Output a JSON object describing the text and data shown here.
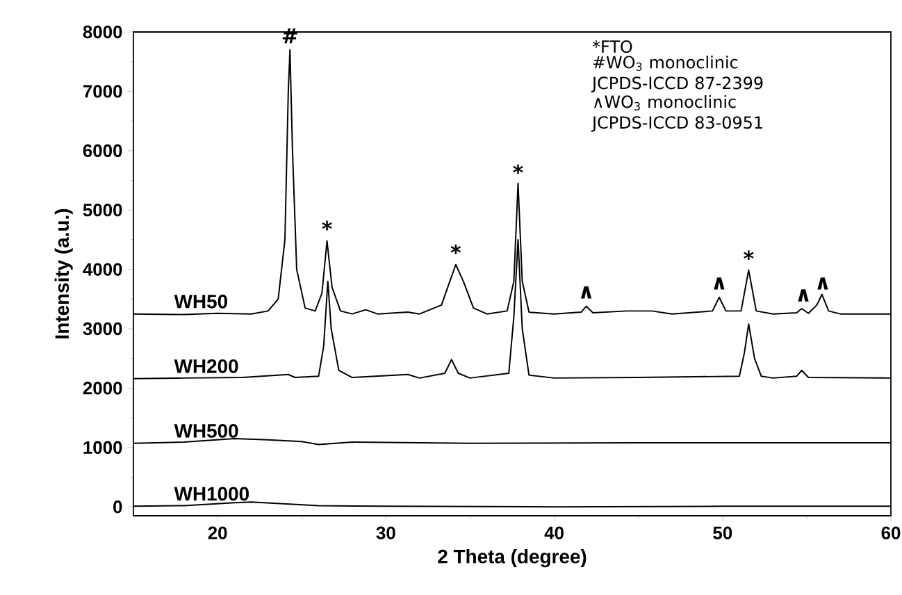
{
  "chart_data": {
    "type": "line",
    "xlabel": "2 Theta (degree)",
    "ylabel": "Intensity (a.u.)",
    "xlim": [
      15,
      60
    ],
    "xticks": [
      20,
      30,
      40,
      50,
      60
    ],
    "ylim": [
      -150,
      8000
    ],
    "yticks": [
      0,
      1000,
      2000,
      3000,
      4000,
      5000,
      6000,
      7000,
      8000
    ],
    "series": [
      {
        "name": "WH50",
        "color": "#000000",
        "x": [
          15,
          18,
          20,
          22,
          23,
          23.6,
          24.0,
          24.2,
          24.3,
          24.45,
          24.7,
          25.2,
          25.8,
          26.2,
          26.5,
          26.8,
          27.3,
          28,
          28.8,
          29.5,
          31.3,
          32,
          33.3,
          33.8,
          34.15,
          34.6,
          35.2,
          36,
          37.2,
          37.6,
          37.85,
          38.1,
          38.5,
          40,
          41.6,
          41.9,
          42.3,
          44.3,
          45.8,
          47,
          49.4,
          49.8,
          50.2,
          51.1,
          51.55,
          52,
          53,
          54.4,
          54.7,
          55.1,
          55.6,
          55.9,
          56.3,
          57,
          60
        ],
        "values": [
          3250,
          3240,
          3260,
          3250,
          3300,
          3500,
          4500,
          7000,
          7700,
          6000,
          4000,
          3350,
          3300,
          3600,
          4480,
          3700,
          3300,
          3250,
          3320,
          3250,
          3280,
          3250,
          3400,
          3800,
          4080,
          3800,
          3350,
          3250,
          3300,
          3800,
          5450,
          3800,
          3280,
          3250,
          3280,
          3380,
          3270,
          3300,
          3300,
          3250,
          3300,
          3530,
          3300,
          3300,
          3990,
          3300,
          3250,
          3270,
          3340,
          3260,
          3400,
          3580,
          3300,
          3250,
          3250
        ]
      },
      {
        "name": "WH200",
        "color": "#000000",
        "x": [
          15,
          18,
          21.5,
          24.2,
          24.6,
          26,
          26.3,
          26.55,
          26.75,
          27.2,
          28,
          31.3,
          32,
          33.5,
          33.9,
          34.3,
          35,
          37.3,
          37.6,
          37.85,
          38.1,
          38.5,
          40,
          45,
          51,
          51.3,
          51.55,
          51.9,
          52.3,
          53,
          54.4,
          54.7,
          55.1,
          60
        ],
        "values": [
          2160,
          2170,
          2180,
          2230,
          2180,
          2200,
          2700,
          3800,
          3000,
          2300,
          2180,
          2230,
          2170,
          2250,
          2480,
          2250,
          2170,
          2250,
          3200,
          4500,
          3000,
          2220,
          2170,
          2180,
          2200,
          2600,
          3080,
          2500,
          2200,
          2170,
          2200,
          2300,
          2180,
          2170
        ]
      },
      {
        "name": "WH500",
        "color": "#000000",
        "x": [
          15,
          18,
          21,
          23,
          25,
          26,
          28,
          35,
          45,
          60
        ],
        "values": [
          1070,
          1090,
          1150,
          1130,
          1100,
          1050,
          1090,
          1070,
          1080,
          1080
        ]
      },
      {
        "name": "WH1000",
        "color": "#000000",
        "x": [
          15,
          18,
          21,
          22,
          24,
          26,
          30,
          40,
          50,
          60
        ],
        "values": [
          10,
          20,
          70,
          80,
          50,
          20,
          10,
          0,
          10,
          10
        ]
      }
    ],
    "annotations": [
      {
        "text": "#",
        "x": 24.3,
        "y": 7800
      },
      {
        "text": "*",
        "x": 26.5,
        "y": 4550
      },
      {
        "text": "*",
        "x": 34.15,
        "y": 4150
      },
      {
        "text": "*",
        "x": 37.85,
        "y": 5500
      },
      {
        "text": "*",
        "x": 51.55,
        "y": 4050
      },
      {
        "text": "∧",
        "x": 41.9,
        "y": 3500
      },
      {
        "text": "∧",
        "x": 49.8,
        "y": 3650
      },
      {
        "text": "∧",
        "x": 54.8,
        "y": 3450
      },
      {
        "text": "∧",
        "x": 55.95,
        "y": 3650
      },
      "*FTO",
      "#WO$_{3}$ monoclinic JCPDS-ICCD 87-2399",
      "∧WO$_{3}$ monoclinic JCPDS-ICCD 83-0951"
    ]
  }
}
